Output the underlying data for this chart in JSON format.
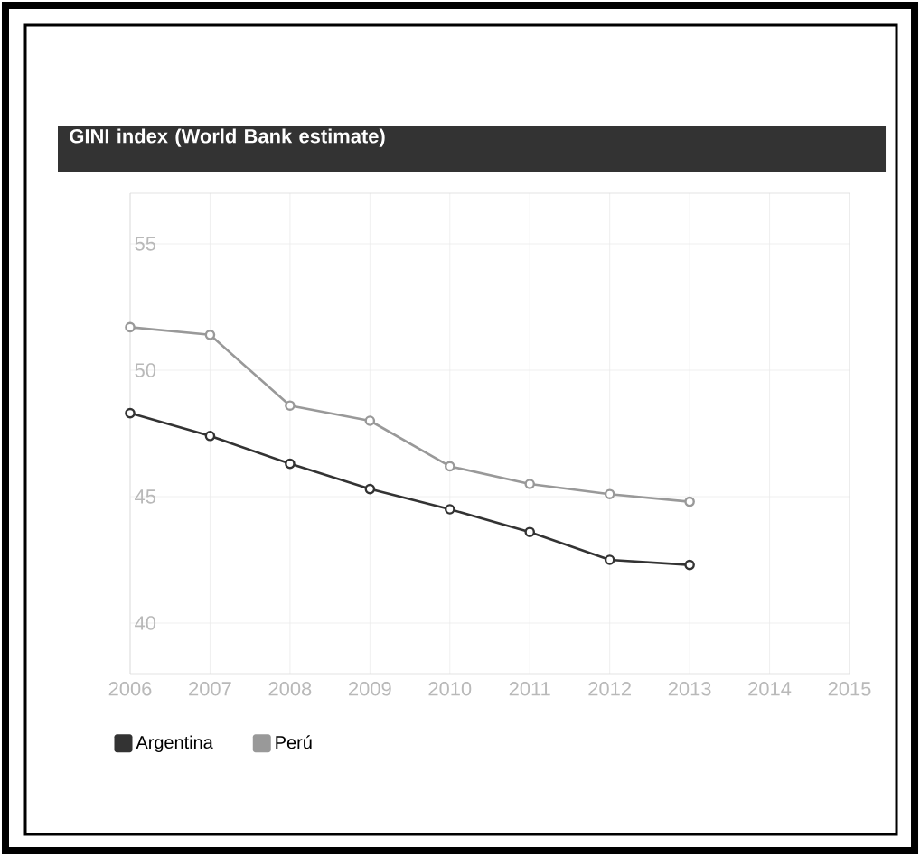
{
  "chart_data": {
    "type": "line",
    "title": "GINI index (World Bank estimate)",
    "x": [
      2006,
      2007,
      2008,
      2009,
      2010,
      2011,
      2012,
      2013
    ],
    "xlim": [
      2006,
      2015
    ],
    "xticks": [
      2006,
      2007,
      2008,
      2009,
      2010,
      2011,
      2012,
      2013,
      2014,
      2015
    ],
    "ylim": [
      38,
      57
    ],
    "yticks": [
      40,
      45,
      50,
      55
    ],
    "series": [
      {
        "name": "Argentina",
        "color": "#333333",
        "values": [
          48.3,
          47.4,
          46.3,
          45.3,
          44.5,
          43.6,
          42.5,
          42.3
        ]
      },
      {
        "name": "Perú",
        "color": "#999999",
        "values": [
          51.7,
          51.4,
          48.6,
          48.0,
          46.2,
          45.5,
          45.1,
          44.8
        ]
      }
    ],
    "grid": true,
    "legend": "bottom left",
    "marker": "circle"
  }
}
